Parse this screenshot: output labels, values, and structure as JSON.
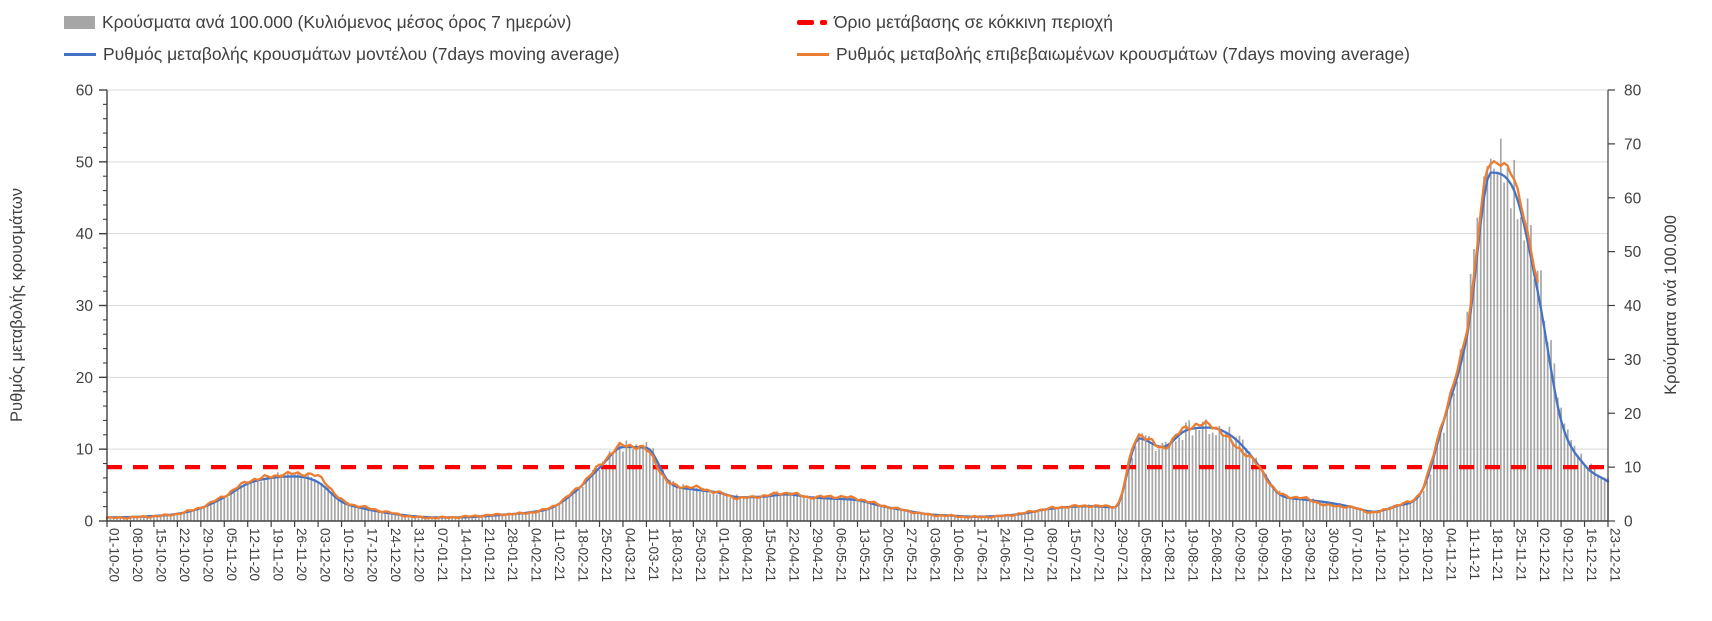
{
  "legend": {
    "items": [
      {
        "label": "Κρούσματα ανά 100.000 (Κυλιόμενος μέσος όρος 7 ημερών)",
        "type": "bar-swatch",
        "color": "#a6a6a6"
      },
      {
        "label": "Όριο μετάβασης σε κόκκινη περιοχή",
        "type": "dashed-line",
        "color": "#ff0000"
      },
      {
        "label": "Ρυθμός μεταβολής κρουσμάτων μοντέλου (7days moving average)",
        "type": "line",
        "color": "#4472c4"
      },
      {
        "label": "Ρυθμός μεταβολής επιβεβαιωμένων κρουσμάτων (7days moving average)",
        "type": "line",
        "color": "#ed7d31"
      }
    ]
  },
  "chart_data": {
    "type": "bar",
    "combo": "daily gray bars (right axis) + two 7-day moving-average lines (left axis) + red dashed threshold",
    "title": "",
    "xlabel": "",
    "left_axis": {
      "label": "Ρυθμός μεταβολής κρουσμάτων",
      "min": 0,
      "max": 60,
      "tick_step": 10,
      "minor_tick_step": 2
    },
    "right_axis": {
      "label": "Κρούσματα ανά 100.000",
      "min": 0,
      "max": 80,
      "tick_step": 10
    },
    "grid": "horizontal, light gray, every 10 left-axis units",
    "legend_position": "top",
    "threshold": {
      "label": "Όριο μετάβασης σε κόκκινη περιοχή",
      "value_right_axis": 10,
      "color": "#ff0000",
      "style": "dashed"
    },
    "x_tick_labels": [
      "01-10-20",
      "08-10-20",
      "15-10-20",
      "22-10-20",
      "29-10-20",
      "05-11-20",
      "12-11-20",
      "19-11-20",
      "26-11-20",
      "03-12-20",
      "10-12-20",
      "17-12-20",
      "24-12-20",
      "31-12-20",
      "07-01-21",
      "14-01-21",
      "21-01-21",
      "28-01-21",
      "04-02-21",
      "11-02-21",
      "18-02-21",
      "25-02-21",
      "04-03-21",
      "11-03-21",
      "18-03-21",
      "25-03-21",
      "01-04-21",
      "08-04-21",
      "15-04-21",
      "22-04-21",
      "29-04-21",
      "06-05-21",
      "13-05-21",
      "20-05-21",
      "27-05-21",
      "03-06-21",
      "10-06-21",
      "17-06-21",
      "24-06-21",
      "01-07-21",
      "08-07-21",
      "15-07-21",
      "22-07-21",
      "29-07-21",
      "05-08-21",
      "12-08-21",
      "19-08-21",
      "26-08-21",
      "02-09-21",
      "09-09-21",
      "16-09-21",
      "23-09-21",
      "30-09-21",
      "07-10-21",
      "14-10-21",
      "21-10-21",
      "28-10-21",
      "04-11-21",
      "11-11-21",
      "18-11-21",
      "25-11-21",
      "02-12-21",
      "09-12-21",
      "16-12-21",
      "23-12-21"
    ],
    "days_between_ticks": 7,
    "series": [
      {
        "name": "Κρούσματα ανά 100.000 (Κυλιόμενος μέσος όρος 7 ημερών)",
        "type": "bar",
        "axis": "right",
        "color": "#a6a6a6",
        "values_at_ticks": [
          0.7,
          0.8,
          1.0,
          1.4,
          2.4,
          4.5,
          7.0,
          8.2,
          8.8,
          7.5,
          3.8,
          2.4,
          1.6,
          1.0,
          0.8,
          0.9,
          1.1,
          1.3,
          1.6,
          2.6,
          5.6,
          10.0,
          14.0,
          13.5,
          7.5,
          6.0,
          5.4,
          4.6,
          4.7,
          5.2,
          4.6,
          4.4,
          4.1,
          3.0,
          2.1,
          1.3,
          1.0,
          0.9,
          1.0,
          1.4,
          2.2,
          2.7,
          2.8,
          2.6,
          15.5,
          14.0,
          17.0,
          17.5,
          15.5,
          11.0,
          5.1,
          4.1,
          3.5,
          2.8,
          1.9,
          2.9,
          5.0,
          18.0,
          38.0,
          73.0,
          62.0,
          47.0,
          20.0,
          11.0,
          8.0
        ]
      },
      {
        "name": "Ρυθμός μεταβολής κρουσμάτων μοντέλου (7days moving average)",
        "type": "line",
        "axis": "left",
        "color": "#4472c4",
        "values_at_ticks": [
          0.5,
          0.55,
          0.7,
          1.0,
          1.8,
          3.3,
          5.2,
          6.0,
          6.2,
          5.4,
          2.7,
          1.7,
          1.1,
          0.7,
          0.5,
          0.5,
          0.65,
          0.9,
          1.2,
          1.9,
          4.2,
          7.4,
          10.3,
          10.2,
          5.3,
          4.4,
          4.0,
          3.3,
          3.4,
          3.7,
          3.3,
          3.1,
          2.9,
          2.1,
          1.5,
          0.95,
          0.75,
          0.6,
          0.7,
          1.0,
          1.6,
          1.95,
          2.05,
          1.9,
          11.5,
          10.3,
          12.6,
          13.0,
          11.7,
          8.2,
          3.7,
          3.0,
          2.6,
          2.0,
          1.3,
          2.1,
          3.8,
          14.0,
          26.0,
          48.5,
          46.0,
          32.0,
          14.0,
          7.8,
          5.5
        ]
      },
      {
        "name": "Ρυθμός μεταβολής επιβεβαιωμένων κρουσμάτων (7days moving average)",
        "type": "line",
        "axis": "left",
        "color": "#ed7d31",
        "values_at_ticks": [
          0.4,
          0.5,
          0.65,
          1.0,
          1.9,
          3.5,
          5.5,
          6.2,
          6.6,
          6.2,
          2.9,
          1.9,
          1.2,
          0.6,
          0.45,
          0.55,
          0.75,
          0.95,
          1.15,
          2.0,
          4.4,
          7.7,
          10.5,
          9.9,
          5.2,
          4.7,
          4.0,
          3.2,
          3.5,
          3.9,
          3.3,
          3.4,
          3.1,
          2.2,
          1.5,
          0.9,
          0.7,
          0.55,
          0.65,
          1.05,
          1.65,
          2.0,
          2.1,
          2.0,
          12.0,
          10.2,
          13.0,
          13.4,
          10.8,
          8.0,
          3.8,
          3.2,
          2.2,
          1.95,
          1.2,
          2.2,
          4.0,
          14.5,
          27.0,
          50.0,
          47.5,
          33.0,
          null,
          null,
          null
        ]
      }
    ],
    "left_tick_labels": [
      "0",
      "10",
      "20",
      "30",
      "40",
      "50",
      "60"
    ],
    "right_tick_labels": [
      "0",
      "10",
      "20",
      "30",
      "40",
      "50",
      "60",
      "70",
      "80"
    ]
  }
}
